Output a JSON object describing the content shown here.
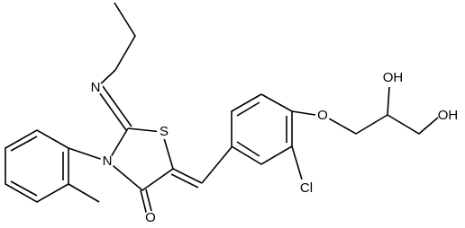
{
  "atoms": [
    "N",
    "S",
    "N",
    "O",
    "Cl",
    "O",
    "OH",
    "OH"
  ]
}
